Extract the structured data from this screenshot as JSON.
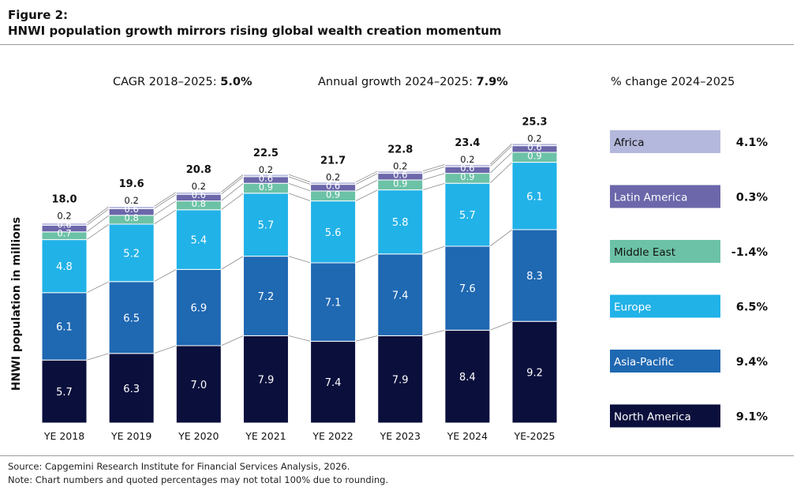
{
  "figure": {
    "label": "Figure 2:",
    "title": "HNWI population growth mirrors rising global wealth creation momentum"
  },
  "chart_data": {
    "type": "bar",
    "stacked": true,
    "categories": [
      "YE 2018",
      "YE 2019",
      "YE 2020",
      "YE 2021",
      "YE 2022",
      "YE 2023",
      "YE 2024",
      "YE-2025"
    ],
    "series": [
      {
        "name": "North America",
        "color": "#0b0f3c",
        "values": [
          5.7,
          6.3,
          7.0,
          7.9,
          7.4,
          7.9,
          8.4,
          9.2
        ]
      },
      {
        "name": "Asia-Pacific",
        "color": "#1f68b2",
        "values": [
          6.1,
          6.5,
          6.9,
          7.2,
          7.1,
          7.4,
          7.6,
          8.3
        ]
      },
      {
        "name": "Europe",
        "color": "#21b2e8",
        "values": [
          4.8,
          5.2,
          5.4,
          5.7,
          5.6,
          5.8,
          5.7,
          6.1
        ]
      },
      {
        "name": "Middle East",
        "color": "#6cc2a6",
        "values": [
          0.7,
          0.8,
          0.8,
          0.9,
          0.9,
          0.9,
          0.9,
          0.9
        ]
      },
      {
        "name": "Latin America",
        "color": "#6b67aa",
        "values": [
          0.6,
          0.6,
          0.6,
          0.6,
          0.6,
          0.6,
          0.6,
          0.6
        ]
      },
      {
        "name": "Africa",
        "color": "#b4b8dc",
        "values": [
          0.2,
          0.2,
          0.2,
          0.2,
          0.2,
          0.2,
          0.2,
          0.2
        ]
      }
    ],
    "totals": [
      "18.0",
      "19.6",
      "20.8",
      "22.5",
      "21.7",
      "22.8",
      "23.4",
      "25.3"
    ],
    "ylabel": "HNWI population in millions",
    "ylim": [
      0,
      26
    ],
    "grid": false,
    "annotations": {
      "cagr_label": "CAGR 2018–2025: ",
      "cagr_value": "5.0%",
      "annual_label": "Annual growth 2024–2025: ",
      "annual_value": "7.9%"
    },
    "legend": {
      "title": "% change 2024–2025",
      "placement": "right",
      "items": [
        {
          "name": "Africa",
          "change": "4.1%"
        },
        {
          "name": "Latin America",
          "change": "0.3%"
        },
        {
          "name": "Middle East",
          "change": "-1.4%"
        },
        {
          "name": "Europe",
          "change": "6.5%"
        },
        {
          "name": "Asia-Pacific",
          "change": "9.4%"
        },
        {
          "name": "North America",
          "change": "9.1%"
        }
      ]
    }
  },
  "footer": {
    "source": "Source: Capgemini Research Institute for Financial Services Analysis, 2026.",
    "note": "Note: Chart numbers and quoted percentages may not total 100% due to rounding."
  }
}
